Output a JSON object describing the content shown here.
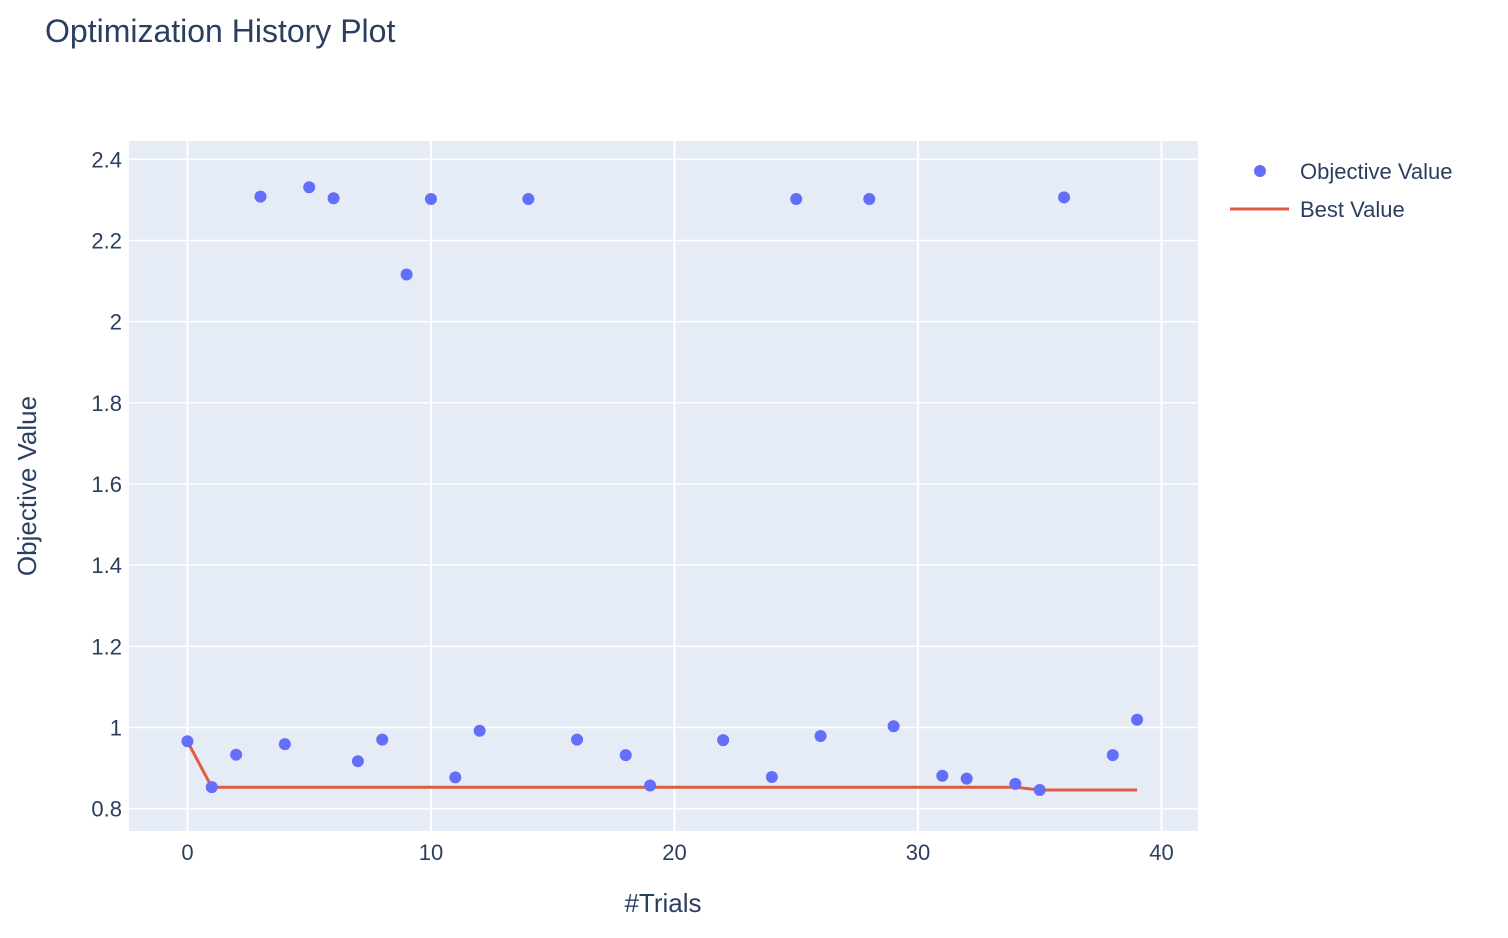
{
  "chart_data": {
    "type": "scatter",
    "title": "Optimization History Plot",
    "xlabel": "#Trials",
    "ylabel": "Objective Value",
    "xlim": [
      -2.4,
      41.5
    ],
    "ylim": [
      0.745,
      2.445
    ],
    "x_ticks": [
      0,
      10,
      20,
      30,
      40
    ],
    "y_ticks": [
      0.8,
      1,
      1.2,
      1.4,
      1.6,
      1.8,
      2,
      2.2,
      2.4
    ],
    "x_tick_labels": [
      "0",
      "10",
      "20",
      "30",
      "40"
    ],
    "y_tick_labels": [
      "0.8",
      "1",
      "1.2",
      "1.4",
      "1.6",
      "1.8",
      "2",
      "2.2",
      "2.4"
    ],
    "grid": true,
    "legend_position": "top-right",
    "series": [
      {
        "name": "Objective Value",
        "mode": "markers",
        "color": "#636efa",
        "x": [
          0,
          1,
          2,
          3,
          4,
          5,
          6,
          7,
          8,
          9,
          10,
          11,
          12,
          14,
          16,
          18,
          19,
          22,
          24,
          25,
          26,
          28,
          29,
          31,
          32,
          34,
          35,
          36,
          38,
          39
        ],
        "y": [
          0.966,
          0.853,
          0.933,
          2.308,
          0.959,
          2.331,
          2.304,
          0.917,
          0.97,
          2.116,
          2.302,
          0.877,
          0.992,
          2.302,
          0.97,
          0.932,
          0.857,
          0.969,
          0.878,
          2.302,
          0.979,
          2.302,
          1.003,
          0.881,
          0.874,
          0.861,
          0.846,
          2.306,
          0.932,
          1.019
        ]
      },
      {
        "name": "Best Value",
        "mode": "lines",
        "color": "#e05b42",
        "x": [
          0,
          1,
          2,
          3,
          4,
          5,
          6,
          7,
          8,
          9,
          10,
          11,
          12,
          14,
          16,
          18,
          19,
          22,
          24,
          25,
          26,
          28,
          29,
          31,
          32,
          34,
          35,
          36,
          38,
          39
        ],
        "y": [
          0.966,
          0.853,
          0.853,
          0.853,
          0.853,
          0.853,
          0.853,
          0.853,
          0.853,
          0.853,
          0.853,
          0.853,
          0.853,
          0.853,
          0.853,
          0.853,
          0.853,
          0.853,
          0.853,
          0.853,
          0.853,
          0.853,
          0.853,
          0.853,
          0.853,
          0.853,
          0.846,
          0.846,
          0.846,
          0.846
        ]
      }
    ]
  }
}
